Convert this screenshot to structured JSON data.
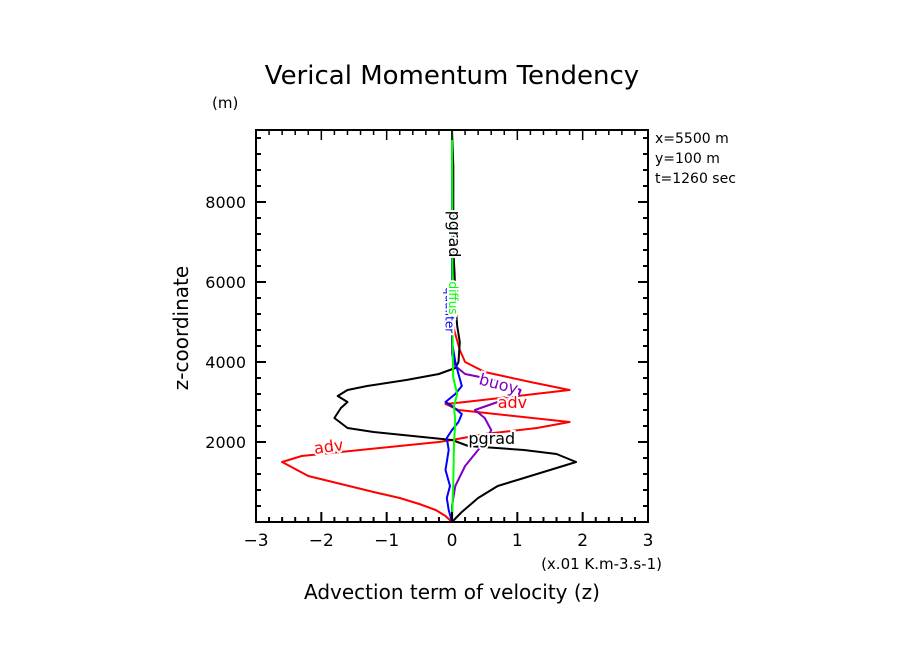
{
  "chart_data": {
    "type": "line",
    "title": "Verical Momentum Tendency",
    "xlabel": "Advection term of velocity (z)",
    "xunits": "(x.01 K.m-3.s-1)",
    "ylabel": "z-coordinate",
    "yunits": "(m)",
    "xlim": [
      -3,
      3
    ],
    "ylim": [
      0,
      9800
    ],
    "xticks": [
      -3,
      -2,
      -1,
      0,
      1,
      2,
      3
    ],
    "xtick_labels": [
      "−3",
      "−2",
      "−1",
      "0",
      "1",
      "2",
      "3"
    ],
    "yticks": [
      2000,
      4000,
      6000,
      8000
    ],
    "ytick_labels": [
      "2000",
      "4000",
      "6000",
      "8000"
    ],
    "grid": false,
    "info": [
      "x=5500  m",
      "y=100  m",
      "t=1260 sec"
    ],
    "series": [
      {
        "name": "adv",
        "color": "#ff0000",
        "label_positions": [
          [
            -2.1,
            1700
          ],
          [
            0.7,
            2850
          ]
        ],
        "points": [
          [
            0,
            0
          ],
          [
            -0.1,
            150
          ],
          [
            -0.25,
            300
          ],
          [
            -0.5,
            450
          ],
          [
            -0.8,
            600
          ],
          [
            -1.2,
            750
          ],
          [
            -1.7,
            950
          ],
          [
            -2.2,
            1150
          ],
          [
            -2.6,
            1500
          ],
          [
            -2.3,
            1650
          ],
          [
            -0.2,
            2000
          ],
          [
            0,
            2050
          ],
          [
            0.5,
            2200
          ],
          [
            1.3,
            2350
          ],
          [
            1.8,
            2500
          ],
          [
            0.1,
            2800
          ],
          [
            -0.1,
            2950
          ],
          [
            0.2,
            3000
          ],
          [
            1.0,
            3150
          ],
          [
            1.8,
            3300
          ],
          [
            1.2,
            3500
          ],
          [
            0.5,
            3750
          ],
          [
            0.2,
            4000
          ],
          [
            0.12,
            4300
          ],
          [
            0.05,
            4700
          ],
          [
            0,
            5000
          ],
          [
            0,
            9800
          ]
        ]
      },
      {
        "name": "pgrad",
        "color": "#000000",
        "label_positions": [
          [
            0.25,
            1950
          ],
          [
            0,
            7200
          ]
        ],
        "points": [
          [
            0,
            0
          ],
          [
            0.15,
            250
          ],
          [
            0.4,
            600
          ],
          [
            0.7,
            900
          ],
          [
            1.1,
            1100
          ],
          [
            1.5,
            1300
          ],
          [
            1.9,
            1500
          ],
          [
            1.6,
            1700
          ],
          [
            1.1,
            1800
          ],
          [
            0.25,
            1900
          ],
          [
            0,
            2050
          ],
          [
            -0.6,
            2150
          ],
          [
            -1.2,
            2250
          ],
          [
            -1.6,
            2350
          ],
          [
            -1.8,
            2600
          ],
          [
            -1.7,
            2850
          ],
          [
            -1.6,
            3000
          ],
          [
            -1.75,
            3150
          ],
          [
            -1.6,
            3300
          ],
          [
            -1.3,
            3400
          ],
          [
            -0.7,
            3550
          ],
          [
            -0.2,
            3700
          ],
          [
            0.05,
            3850
          ],
          [
            0.1,
            4000
          ],
          [
            0.12,
            4500
          ],
          [
            0.08,
            4900
          ],
          [
            0.05,
            5500
          ],
          [
            0.04,
            6200
          ],
          [
            0.02,
            6800
          ],
          [
            0.02,
            8000
          ],
          [
            0.02,
            8900
          ],
          [
            0,
            9800
          ]
        ]
      },
      {
        "name": "buoy",
        "color": "#8000c0",
        "label_positions": [
          [
            0.4,
            3450
          ]
        ],
        "points": [
          [
            0,
            0
          ],
          [
            0,
            400
          ],
          [
            0.05,
            900
          ],
          [
            0.2,
            1400
          ],
          [
            0.4,
            1800
          ],
          [
            0.55,
            2100
          ],
          [
            0.6,
            2300
          ],
          [
            0.5,
            2600
          ],
          [
            0.35,
            2800
          ],
          [
            0.7,
            3000
          ],
          [
            1.0,
            3100
          ],
          [
            1.05,
            3300
          ],
          [
            0.8,
            3500
          ],
          [
            0.2,
            3700
          ],
          [
            0.05,
            3900
          ],
          [
            0,
            4200
          ],
          [
            0,
            9800
          ]
        ]
      },
      {
        "name": "qualiter",
        "color": "#0000ff",
        "label_positions": [
          [
            -0.05,
            5300
          ]
        ],
        "points": [
          [
            0,
            0
          ],
          [
            -0.05,
            300
          ],
          [
            -0.08,
            600
          ],
          [
            -0.03,
            900
          ],
          [
            -0.1,
            1300
          ],
          [
            -0.05,
            1800
          ],
          [
            -0.08,
            2100
          ],
          [
            0,
            2300
          ],
          [
            0.1,
            2500
          ],
          [
            0.15,
            2700
          ],
          [
            0,
            2900
          ],
          [
            -0.1,
            3000
          ],
          [
            0.05,
            3200
          ],
          [
            0.15,
            3400
          ],
          [
            0.1,
            3700
          ],
          [
            0.05,
            4000
          ],
          [
            0,
            4500
          ],
          [
            0,
            9800
          ]
        ]
      },
      {
        "name": "diffus",
        "color": "#00ff00",
        "label_positions": [
          [
            0,
            5600
          ]
        ],
        "points": [
          [
            0,
            0
          ],
          [
            0.02,
            1000
          ],
          [
            0.03,
            2000
          ],
          [
            0.05,
            2500
          ],
          [
            0.03,
            2900
          ],
          [
            0.08,
            3200
          ],
          [
            0.02,
            3600
          ],
          [
            0.01,
            4200
          ],
          [
            0,
            9800
          ]
        ]
      }
    ]
  }
}
